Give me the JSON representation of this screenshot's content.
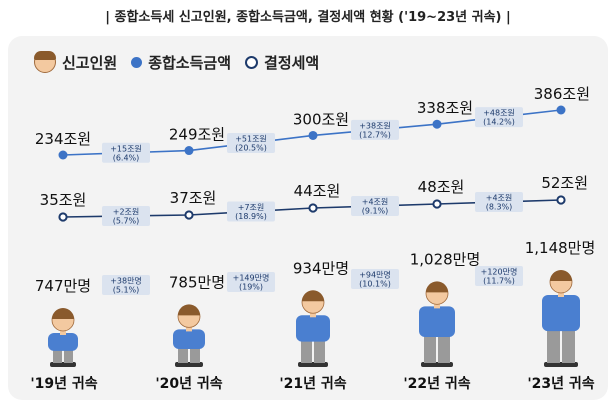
{
  "title": "| 종합소득세 신고인원, 종합소득금액, 결정세액 현황 ('19~23년 귀속) |",
  "legend": [
    {
      "label": "신고인원",
      "icon": "person-face-icon"
    },
    {
      "label": "종합소득금액",
      "icon": "filled-dot-icon"
    },
    {
      "label": "결정세액",
      "icon": "open-dot-icon"
    }
  ],
  "colors": {
    "income_line": "#3c73c6",
    "tax_line": "#1d3a6b",
    "box": "#dbe3ef",
    "shirt": "#4a7fd0",
    "pants": "#9a9a9a",
    "skin": "#f3c9a0",
    "hair": "#8a5a2c"
  },
  "chart_data": {
    "type": "line",
    "categories": [
      "'19년 귀속",
      "'20년 귀속",
      "'21년 귀속",
      "'22년 귀속",
      "'23년 귀속"
    ],
    "series": [
      {
        "name": "종합소득금액",
        "values": [
          234,
          249,
          300,
          338,
          386
        ],
        "labels": [
          "234조원",
          "249조원",
          "300조원",
          "338조원",
          "386조원"
        ],
        "changes": [
          [
            "+15조원",
            "(6.4%)"
          ],
          [
            "+51조원",
            "(20.5%)"
          ],
          [
            "+38조원",
            "(12.7%)"
          ],
          [
            "+48조원",
            "(14.2%)"
          ]
        ]
      },
      {
        "name": "결정세액",
        "values": [
          35,
          37,
          44,
          48,
          52
        ],
        "labels": [
          "35조원",
          "37조원",
          "44조원",
          "48조원",
          "52조원"
        ],
        "changes": [
          [
            "+2조원",
            "(5.7%)"
          ],
          [
            "+7조원",
            "(18.9%)"
          ],
          [
            "+4조원",
            "(9.1%)"
          ],
          [
            "+4조원",
            "(8.3%)"
          ]
        ]
      },
      {
        "name": "신고인원",
        "values": [
          747,
          785,
          934,
          1028,
          1148
        ],
        "labels": [
          "747만명",
          "785만명",
          "934만명",
          "1,028만명",
          "1,148만명"
        ],
        "changes": [
          [
            "+38만명",
            "(5.1%)"
          ],
          [
            "+149만명",
            "(19%)"
          ],
          [
            "+94만명",
            "(10.1%)"
          ],
          [
            "+120만명",
            "(11.7%)"
          ]
        ]
      }
    ]
  }
}
